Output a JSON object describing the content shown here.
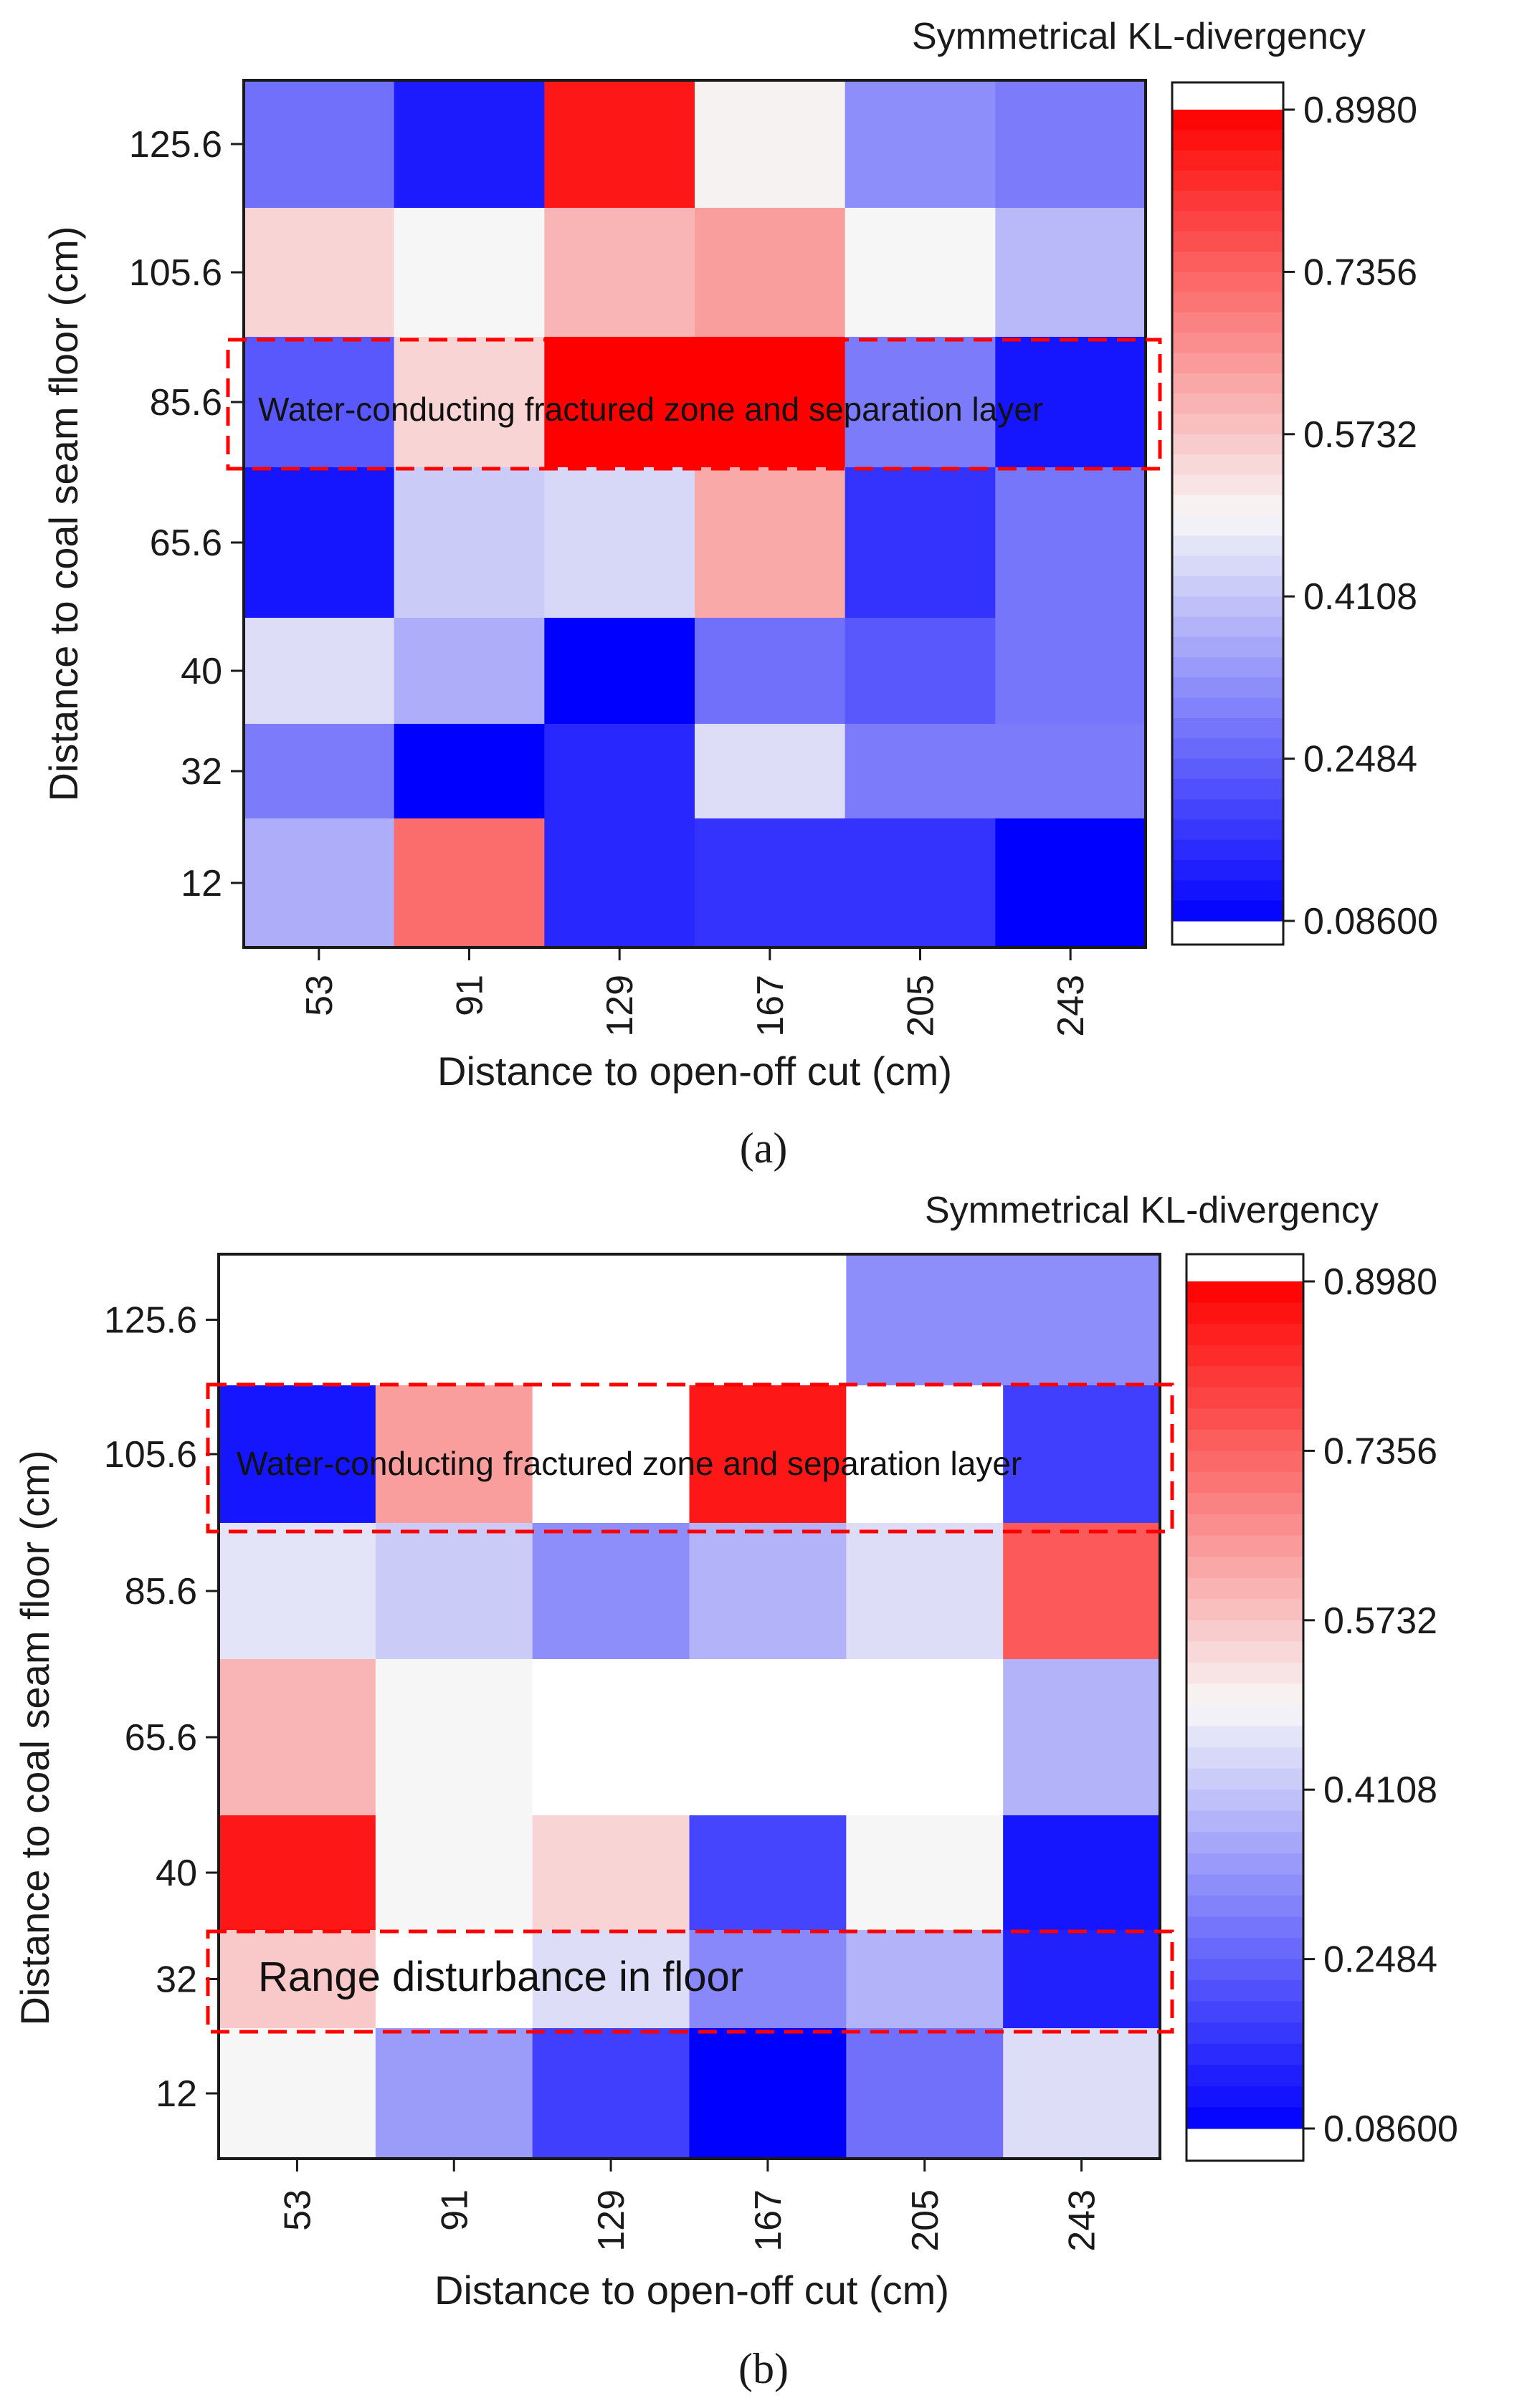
{
  "chart_data": [
    {
      "type": "heatmap",
      "panel_label": "(a)",
      "colorbar_title": "Symmetrical KL-divergency",
      "xlabel": "Distance to open-off cut (cm)",
      "ylabel": "Distance to coal seam floor (cm)",
      "x": [
        "53",
        "91",
        "129",
        "167",
        "205",
        "243"
      ],
      "y": [
        "125.6",
        "105.6",
        "85.6",
        "65.6",
        "40",
        "32",
        "12"
      ],
      "y_values": [
        125.6,
        105.6,
        85.6,
        65.6,
        40,
        32,
        12
      ],
      "values": [
        [
          0.27,
          0.13,
          0.86,
          0.5,
          0.32,
          0.29
        ],
        [
          0.55,
          0.49,
          0.6,
          0.64,
          0.49,
          0.39
        ],
        [
          0.23,
          0.55,
          0.898,
          0.898,
          0.29,
          0.12
        ],
        [
          0.12,
          0.42,
          0.44,
          0.62,
          0.17,
          0.28
        ],
        [
          0.45,
          0.37,
          0.086,
          0.27,
          0.23,
          0.28
        ],
        [
          0.29,
          0.086,
          0.15,
          0.45,
          0.29,
          0.29
        ],
        [
          0.37,
          0.72,
          0.15,
          0.17,
          0.17,
          0.086
        ]
      ],
      "colorbar_ticks": [
        "0.8980",
        "0.7356",
        "0.5732",
        "0.4108",
        "0.2484",
        "0.08600"
      ],
      "colorbar_tick_values": [
        0.898,
        0.7356,
        0.5732,
        0.4108,
        0.2484,
        0.086
      ],
      "vrange": [
        0.086,
        0.898
      ],
      "colormap": {
        "low": "#0000ff",
        "mid": "#f7f7f7",
        "high": "#ff0000"
      },
      "annotations": [
        {
          "text": "Water-conducting fractured zone and separation layer",
          "rows": [
            "85.6"
          ],
          "box_color": "#ff0000",
          "box_style": "dashed"
        }
      ]
    },
    {
      "type": "heatmap",
      "panel_label": "(b)",
      "colorbar_title": "Symmetrical KL-divergency",
      "xlabel": "Distance to open-off cut (cm)",
      "ylabel": "Distance to coal seam floor (cm)",
      "x": [
        "53",
        "91",
        "129",
        "167",
        "205",
        "243"
      ],
      "y": [
        "125.6",
        "105.6",
        "85.6",
        "65.6",
        "40",
        "32",
        "12"
      ],
      "y_values": [
        125.6,
        105.6,
        85.6,
        65.6,
        40,
        32,
        12
      ],
      "values": [
        [
          null,
          null,
          null,
          null,
          0.32,
          0.32
        ],
        [
          0.12,
          0.64,
          null,
          0.86,
          null,
          0.19
        ],
        [
          0.46,
          0.42,
          0.32,
          0.38,
          0.45,
          0.75
        ],
        [
          0.6,
          0.49,
          null,
          null,
          null,
          0.38
        ],
        [
          0.86,
          0.49,
          0.55,
          0.2,
          0.49,
          0.12
        ],
        [
          0.57,
          null,
          0.45,
          0.31,
          0.38,
          0.14
        ],
        [
          0.49,
          0.34,
          0.19,
          0.086,
          0.27,
          0.45
        ]
      ],
      "colorbar_ticks": [
        "0.8980",
        "0.7356",
        "0.5732",
        "0.4108",
        "0.2484",
        "0.08600"
      ],
      "colorbar_tick_values": [
        0.898,
        0.7356,
        0.5732,
        0.4108,
        0.2484,
        0.086
      ],
      "vrange": [
        0.086,
        0.898
      ],
      "colormap": {
        "low": "#0000ff",
        "mid": "#f7f7f7",
        "high": "#ff0000"
      },
      "empty_cell_color": "#ffffff",
      "annotations": [
        {
          "text": "Water-conducting fractured zone and separation layer",
          "rows": [
            "105.6"
          ],
          "box_color": "#ff0000",
          "box_style": "dashed"
        },
        {
          "text": "Range disturbance in floor",
          "rows": [
            "32"
          ],
          "box_color": "#ff0000",
          "box_style": "dashed"
        }
      ]
    }
  ]
}
